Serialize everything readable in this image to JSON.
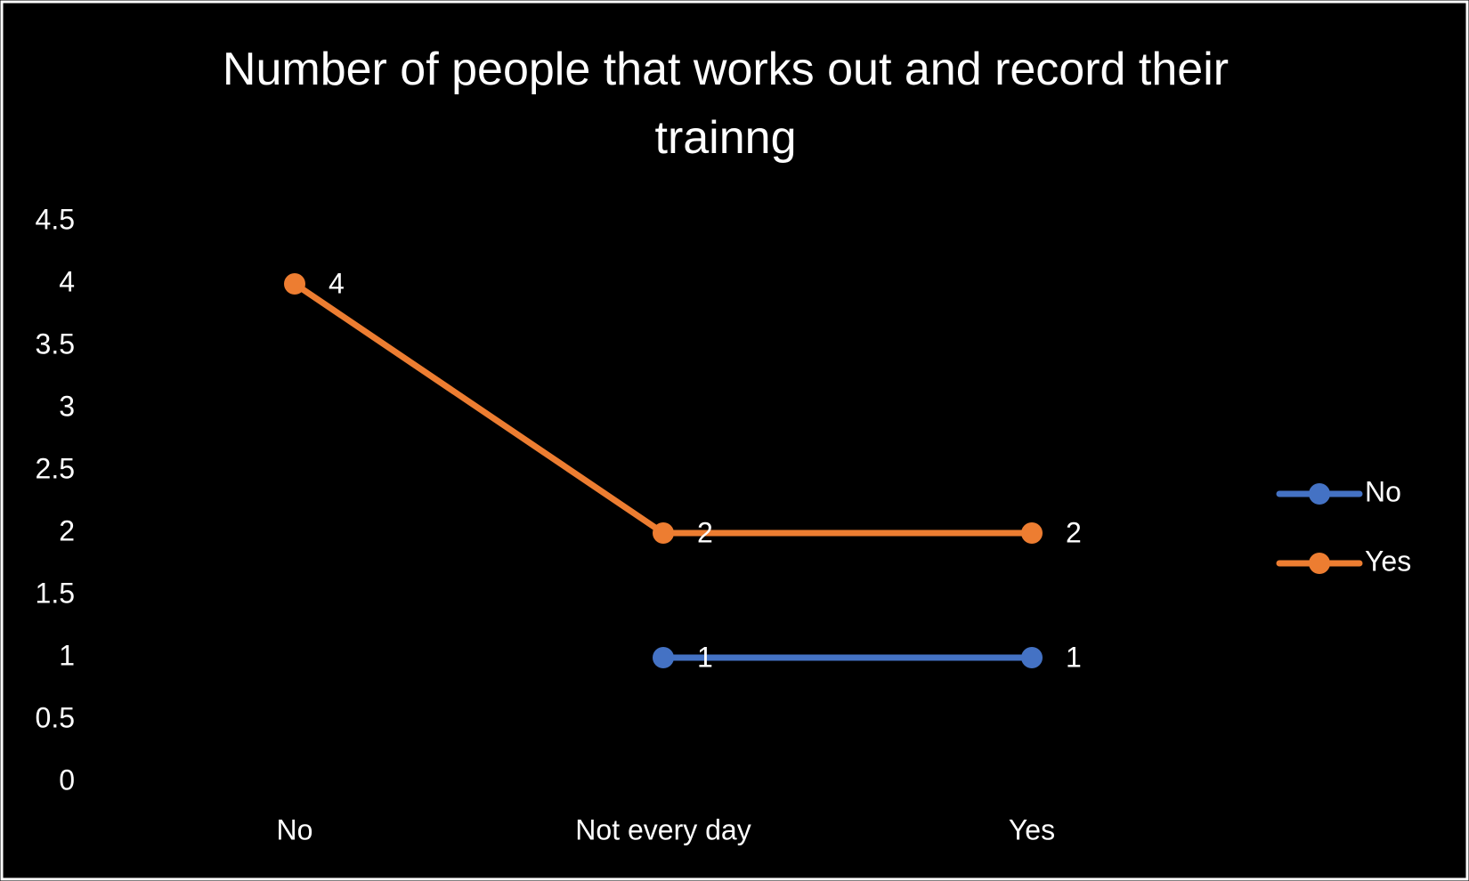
{
  "chart_data": {
    "type": "line",
    "title": "Number of people that works out and record their trainng",
    "categories": [
      "No",
      "Not every day",
      "Yes"
    ],
    "series": [
      {
        "name": "No",
        "color": "#4472c4",
        "values": [
          null,
          1,
          1
        ]
      },
      {
        "name": "Yes",
        "color": "#ed7d31",
        "values": [
          4,
          2,
          2
        ]
      }
    ],
    "ylim": [
      0,
      4.5
    ],
    "yticks": [
      0,
      0.5,
      1,
      1.5,
      2,
      2.5,
      3,
      3.5,
      4,
      4.5
    ],
    "grid": false,
    "legend": "right"
  }
}
